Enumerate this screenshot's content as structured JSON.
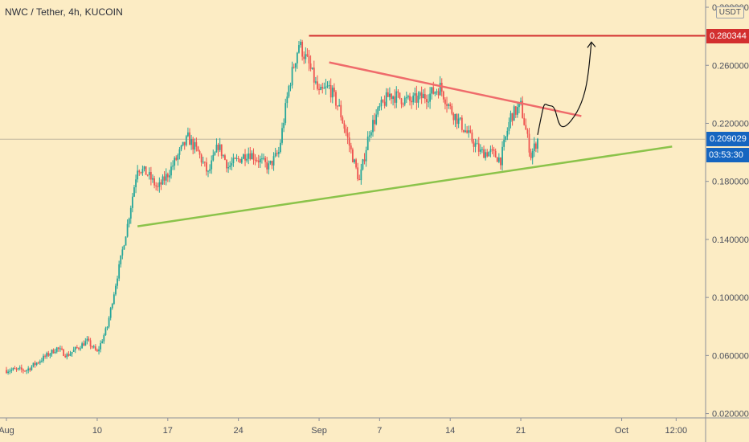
{
  "header": {
    "title": "NWC / Tether, 4h, KUCOIN",
    "unit": "USDT"
  },
  "price_tags": {
    "resistance": "0.280344",
    "last_price": "0.209029",
    "countdown": "03:53:30"
  },
  "colors": {
    "background": "#fcecc4",
    "bull": "#26a69a",
    "bear": "#ef5350",
    "resistance_line": "#d32f2f",
    "downtrend_line": "#ef6b6b",
    "uptrend_line": "#8bc34a",
    "last_price_tag": "#1565c0"
  },
  "chart_data": {
    "type": "candlestick",
    "title": "NWC / Tether, 4h, KUCOIN",
    "xlabel": "",
    "ylabel": "",
    "x_ticks": [
      "Aug",
      "10",
      "17",
      "24",
      "Sep",
      "7",
      "14",
      "21",
      "Oct",
      "12:00"
    ],
    "y_ticks": [
      "0.300000",
      "0.260000",
      "0.220000",
      "0.180000",
      "0.140000",
      "0.100000",
      "0.060000",
      "0.020000"
    ],
    "ylim": [
      0.017,
      0.305
    ],
    "grid": false,
    "series": [
      {
        "kind": "ohlc_path",
        "points": [
          {
            "date": "Aug 3",
            "close": 0.05
          },
          {
            "date": "Aug 5",
            "close": 0.06
          },
          {
            "date": "Aug 6",
            "close": 0.065
          },
          {
            "date": "Aug 7",
            "close": 0.06
          },
          {
            "date": "Aug 9",
            "close": 0.07
          },
          {
            "date": "Aug 10",
            "close": 0.062
          },
          {
            "date": "Aug 11",
            "close": 0.08
          },
          {
            "date": "Aug 12",
            "close": 0.115
          },
          {
            "date": "Aug 13",
            "close": 0.15
          },
          {
            "date": "Aug 14",
            "close": 0.19
          },
          {
            "date": "Aug 15",
            "close": 0.185
          },
          {
            "date": "Aug 16",
            "close": 0.175
          },
          {
            "date": "Aug 17",
            "close": 0.185
          },
          {
            "date": "Aug 19",
            "close": 0.21
          },
          {
            "date": "Aug 20",
            "close": 0.2
          },
          {
            "date": "Aug 21",
            "close": 0.185
          },
          {
            "date": "Aug 22",
            "close": 0.205
          },
          {
            "date": "Aug 23",
            "close": 0.19
          },
          {
            "date": "Aug 25",
            "close": 0.2
          },
          {
            "date": "Aug 26",
            "close": 0.195
          },
          {
            "date": "Aug 27",
            "close": 0.19
          },
          {
            "date": "Aug 28",
            "close": 0.2
          },
          {
            "date": "Aug 29",
            "close": 0.245
          },
          {
            "date": "Aug 30",
            "close": 0.275
          },
          {
            "date": "Aug 31",
            "close": 0.26
          },
          {
            "date": "Sep 1",
            "close": 0.24
          },
          {
            "date": "Sep 2",
            "close": 0.245
          },
          {
            "date": "Sep 3",
            "close": 0.23
          },
          {
            "date": "Sep 4",
            "close": 0.205
          },
          {
            "date": "Sep 5",
            "close": 0.18
          },
          {
            "date": "Sep 6",
            "close": 0.215
          },
          {
            "date": "Sep 7",
            "close": 0.23
          },
          {
            "date": "Sep 8",
            "close": 0.24
          },
          {
            "date": "Sep 10",
            "close": 0.235
          },
          {
            "date": "Sep 12",
            "close": 0.24
          },
          {
            "date": "Sep 13",
            "close": 0.245
          },
          {
            "date": "Sep 14",
            "close": 0.23
          },
          {
            "date": "Sep 16",
            "close": 0.21
          },
          {
            "date": "Sep 17",
            "close": 0.2
          },
          {
            "date": "Sep 18",
            "close": 0.2
          },
          {
            "date": "Sep 19",
            "close": 0.195
          },
          {
            "date": "Sep 20",
            "close": 0.225
          },
          {
            "date": "Sep 21",
            "close": 0.232
          },
          {
            "date": "Sep 22",
            "close": 0.198
          },
          {
            "date": "Sep 22 16:00",
            "close": 0.209
          }
        ]
      }
    ],
    "annotations": {
      "resistance_level": 0.280344,
      "last_price": 0.209029,
      "downtrend_line": [
        {
          "date": "Sep 2",
          "y": 0.262
        },
        {
          "date": "Sep 27",
          "y": 0.225
        }
      ],
      "uptrend_line": [
        {
          "date": "Aug 14",
          "y": 0.149
        },
        {
          "date": "Oct 6",
          "y": 0.204
        }
      ],
      "projection_arrow": [
        {
          "date": "Sep 22 16:00",
          "y": 0.212
        },
        {
          "date": "Sep 24",
          "y": 0.232
        },
        {
          "date": "Sep 26",
          "y": 0.222
        },
        {
          "date": "Sep 28",
          "y": 0.276
        }
      ]
    }
  }
}
